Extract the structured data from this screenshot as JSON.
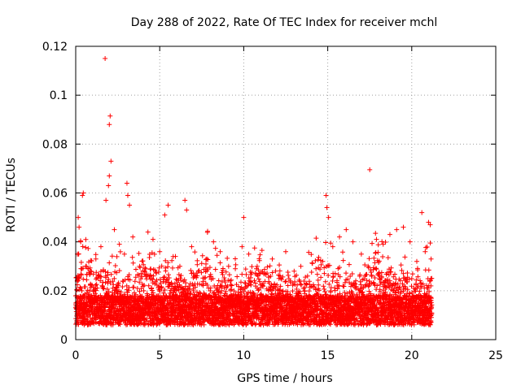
{
  "chart_data": {
    "type": "scatter",
    "title": "Day 288 of 2022, Rate Of TEC Index for receiver mchl",
    "xlabel": "GPS time / hours",
    "ylabel": "ROTI / TECUs",
    "xlim": [
      0,
      25
    ],
    "ylim": [
      0,
      0.12
    ],
    "x_ticks": [
      "0",
      "5",
      "10",
      "15",
      "20",
      "25"
    ],
    "y_ticks": [
      "0",
      "0.02",
      "0.04",
      "0.06",
      "0.08",
      "0.1",
      "0.12"
    ],
    "grid": true,
    "marker": "+",
    "color": "#ff0000",
    "series": [
      {
        "x": [
          1.75,
          2.05,
          2.0,
          2.1,
          2.0,
          1.95,
          1.8,
          0.45,
          0.4,
          0.15,
          0.2,
          3.05,
          3.1,
          3.2,
          4.3,
          5.5,
          5.3,
          6.5,
          6.6,
          10.0,
          14.9,
          14.95,
          15.05,
          17.5,
          20.6,
          21.0,
          21.1,
          0.1,
          0.3,
          0.6,
          0.9,
          1.2,
          1.5,
          2.3,
          2.6,
          2.9,
          3.4,
          3.8,
          4.1,
          4.6,
          5.0,
          5.8,
          6.2,
          6.9,
          7.3,
          7.8,
          8.2,
          8.6,
          9.1,
          9.5,
          9.9,
          10.3,
          10.8,
          11.2,
          11.7,
          12.1,
          12.5,
          13.0,
          13.4,
          13.8,
          14.3,
          14.7,
          15.3,
          15.7,
          16.1,
          16.5,
          17.0,
          17.4,
          17.9,
          18.3,
          18.7,
          19.1,
          19.5,
          19.9,
          20.3,
          20.8,
          21.15
        ],
        "y": [
          0.115,
          0.0915,
          0.088,
          0.073,
          0.067,
          0.063,
          0.057,
          0.06,
          0.059,
          0.05,
          0.046,
          0.064,
          0.059,
          0.055,
          0.044,
          0.055,
          0.051,
          0.057,
          0.053,
          0.05,
          0.059,
          0.054,
          0.05,
          0.0695,
          0.052,
          0.048,
          0.047,
          0.035,
          0.04,
          0.03,
          0.028,
          0.033,
          0.038,
          0.045,
          0.039,
          0.035,
          0.042,
          0.03,
          0.028,
          0.041,
          0.036,
          0.034,
          0.03,
          0.038,
          0.028,
          0.033,
          0.04,
          0.036,
          0.03,
          0.029,
          0.038,
          0.035,
          0.03,
          0.027,
          0.033,
          0.025,
          0.036,
          0.028,
          0.03,
          0.026,
          0.029,
          0.032,
          0.038,
          0.042,
          0.045,
          0.04,
          0.035,
          0.03,
          0.041,
          0.039,
          0.043,
          0.045,
          0.046,
          0.04,
          0.032,
          0.036,
          0.033
        ]
      }
    ]
  }
}
